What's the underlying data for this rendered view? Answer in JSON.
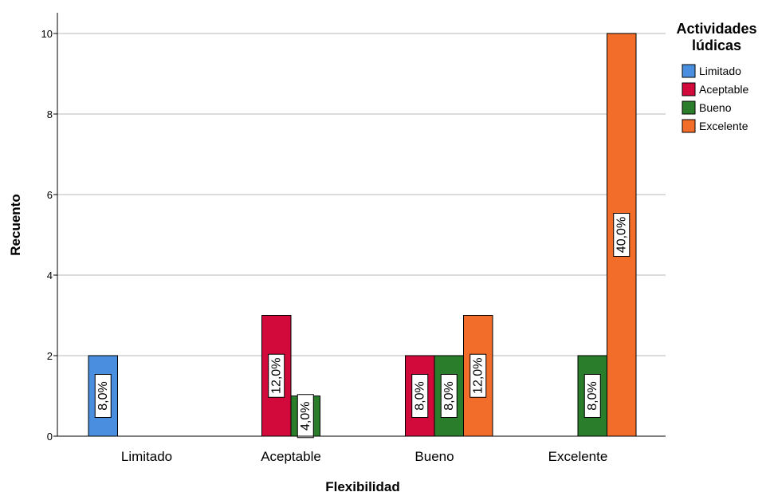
{
  "chart_data": {
    "type": "bar",
    "xlabel": "Flexibilidad",
    "ylabel": "Recuento",
    "ylim": [
      0,
      10.5
    ],
    "yticks": [
      0,
      2,
      4,
      6,
      8,
      10
    ],
    "grid": true,
    "legend": {
      "title": "Actividades lúdicas",
      "placement": "top-right"
    },
    "categories": [
      "Limitado",
      "Aceptable",
      "Bueno",
      "Excelente"
    ],
    "series": [
      {
        "name": "Limitado",
        "color": "#4a8fdf",
        "values": [
          2,
          0,
          0,
          0
        ],
        "labels": [
          "8,0%",
          "",
          "",
          ""
        ]
      },
      {
        "name": "Aceptable",
        "color": "#d20a3c",
        "values": [
          0,
          3,
          2,
          0
        ],
        "labels": [
          "",
          "12,0%",
          "8,0%",
          ""
        ]
      },
      {
        "name": "Bueno",
        "color": "#2a7d2a",
        "values": [
          0,
          1,
          2,
          2
        ],
        "labels": [
          "",
          "4,0%",
          "8,0%",
          "8,0%"
        ]
      },
      {
        "name": "Excelente",
        "color": "#f26d2a",
        "values": [
          0,
          0,
          3,
          10
        ],
        "labels": [
          "",
          "",
          "12,0%",
          "40,0%"
        ]
      }
    ]
  }
}
